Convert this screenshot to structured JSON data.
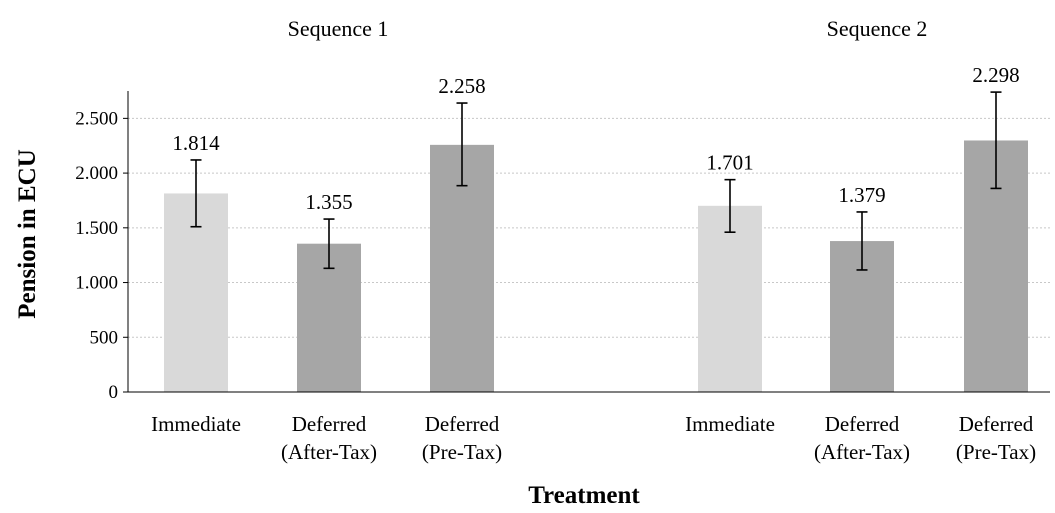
{
  "chart_data": {
    "type": "bar",
    "xlabel": "Treatment",
    "ylabel": "Pension in ECU",
    "ylim": [
      0,
      2750
    ],
    "yticks": [
      0,
      500,
      1000,
      1500,
      2000,
      2500
    ],
    "ytick_labels": [
      "0",
      "500",
      "1.000",
      "1.500",
      "2.000",
      "2.500"
    ],
    "grid": true,
    "colors": {
      "Immediate": "#d9d9d9",
      "Deferred (After-Tax)": "#a6a6a6",
      "Deferred (Pre-Tax)": "#a6a6a6"
    },
    "groups": [
      {
        "title": "Sequence 1",
        "bars": [
          {
            "category": "Immediate",
            "category_lines": [
              "Immediate"
            ],
            "value": 1814,
            "label": "1.814",
            "err_low": 1510,
            "err_high": 2120
          },
          {
            "category": "Deferred (After-Tax)",
            "category_lines": [
              "Deferred",
              "(After-Tax)"
            ],
            "value": 1355,
            "label": "1.355",
            "err_low": 1130,
            "err_high": 1580
          },
          {
            "category": "Deferred (Pre-Tax)",
            "category_lines": [
              "Deferred",
              "(Pre-Tax)"
            ],
            "value": 2258,
            "label": "2.258",
            "err_low": 1885,
            "err_high": 2640
          }
        ]
      },
      {
        "title": "Sequence 2",
        "bars": [
          {
            "category": "Immediate",
            "category_lines": [
              "Immediate"
            ],
            "value": 1701,
            "label": "1.701",
            "err_low": 1460,
            "err_high": 1940
          },
          {
            "category": "Deferred (After-Tax)",
            "category_lines": [
              "Deferred",
              "(After-Tax)"
            ],
            "value": 1379,
            "label": "1.379",
            "err_low": 1115,
            "err_high": 1645
          },
          {
            "category": "Deferred (Pre-Tax)",
            "category_lines": [
              "Deferred",
              "(Pre-Tax)"
            ],
            "value": 2298,
            "label": "2.298",
            "err_low": 1860,
            "err_high": 2740
          }
        ]
      }
    ]
  }
}
